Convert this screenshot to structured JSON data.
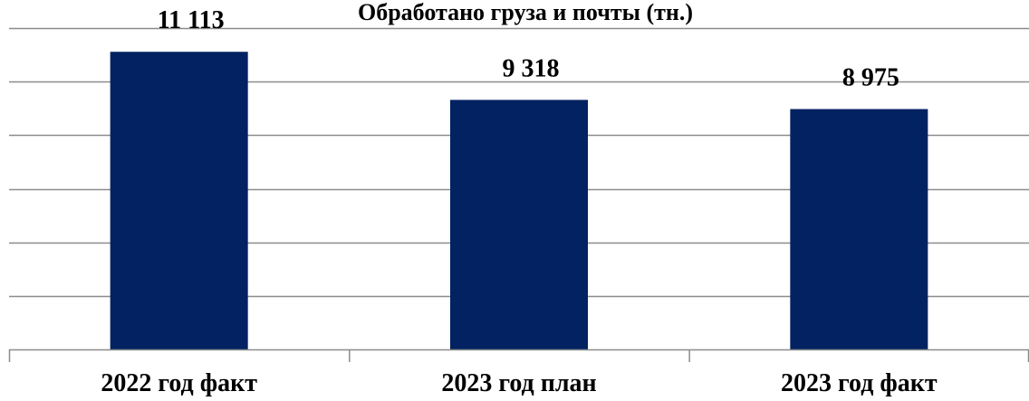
{
  "chart_data": {
    "type": "bar",
    "title": "Обработано груза и почты (тн.)",
    "categories": [
      "2022 год факт",
      "2023 год план",
      "2023 год факт"
    ],
    "values": [
      11113,
      9318,
      8975
    ],
    "value_labels": [
      "11 113",
      "9 318",
      "8 975"
    ],
    "ylim": [
      0,
      12000
    ],
    "y_gridlines": [
      2000,
      4000,
      6000,
      8000,
      10000,
      12000
    ],
    "grid": true,
    "legend": "none",
    "xlabel": "",
    "ylabel": "",
    "colors": {
      "bar": "#022261",
      "grid": "#8c8c8c",
      "axis": "#8c8c8c",
      "text": "#000000"
    }
  }
}
